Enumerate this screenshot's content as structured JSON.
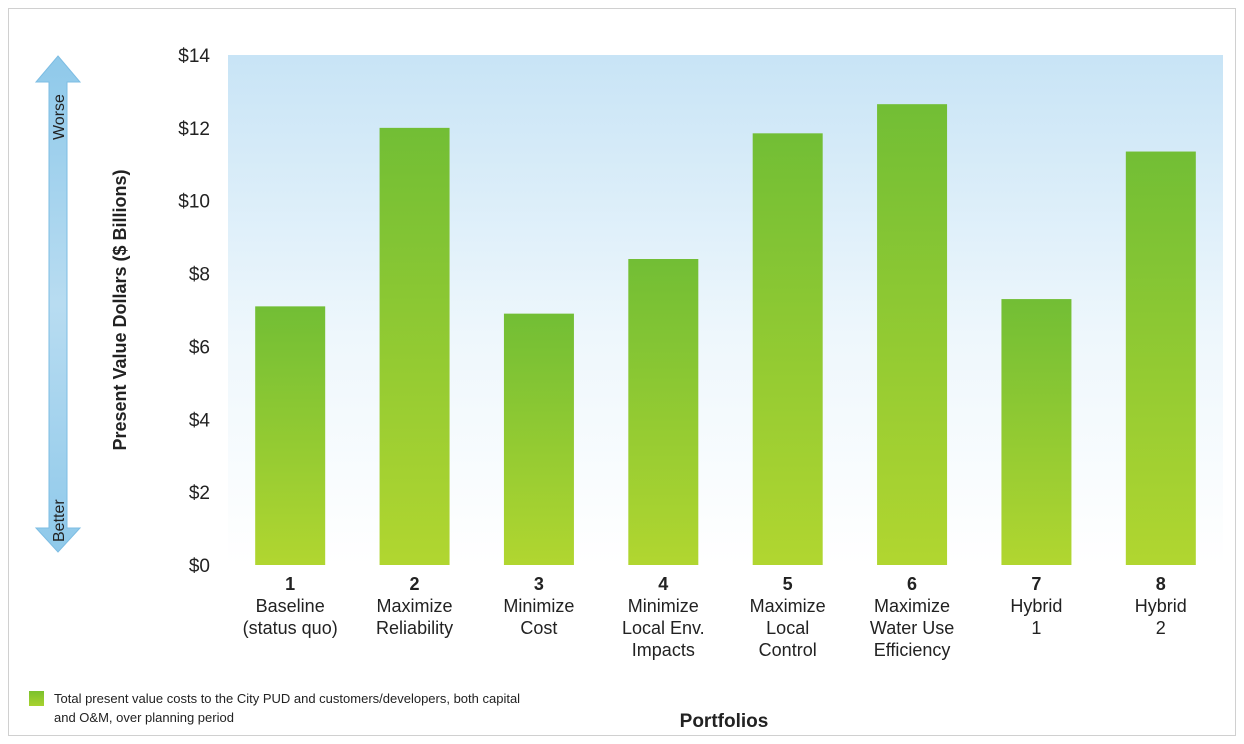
{
  "chart_data": {
    "type": "bar",
    "categories": [
      [
        "1",
        "Baseline",
        "(status quo)"
      ],
      [
        "2",
        "Maximize",
        "Reliability"
      ],
      [
        "3",
        "Minimize",
        "Cost"
      ],
      [
        "4",
        "Minimize",
        "Local Env.",
        "Impacts"
      ],
      [
        "5",
        "Maximize",
        "Local",
        "Control"
      ],
      [
        "6",
        "Maximize",
        "Water Use",
        "Efficiency"
      ],
      [
        "7",
        "Hybrid",
        "1"
      ],
      [
        "8",
        "Hybrid",
        "2"
      ]
    ],
    "values": [
      7.1,
      12.0,
      6.9,
      8.4,
      11.85,
      12.65,
      7.3,
      11.35
    ],
    "ylabel": "Present Value Dollars ($ Billions)",
    "xlabel": "Portfolios",
    "ylim": [
      0,
      14
    ],
    "yticks": [
      "$0",
      "$2",
      "$4",
      "$6",
      "$8",
      "$10",
      "$12",
      "$14"
    ],
    "arrow_top": "Worse",
    "arrow_bottom": "Better",
    "legend": "Total present value costs to the City PUD and customers/developers, both capital and O&M, over planning period",
    "bar_color": "#8cc63f",
    "background_top": "#cfe8f8"
  }
}
